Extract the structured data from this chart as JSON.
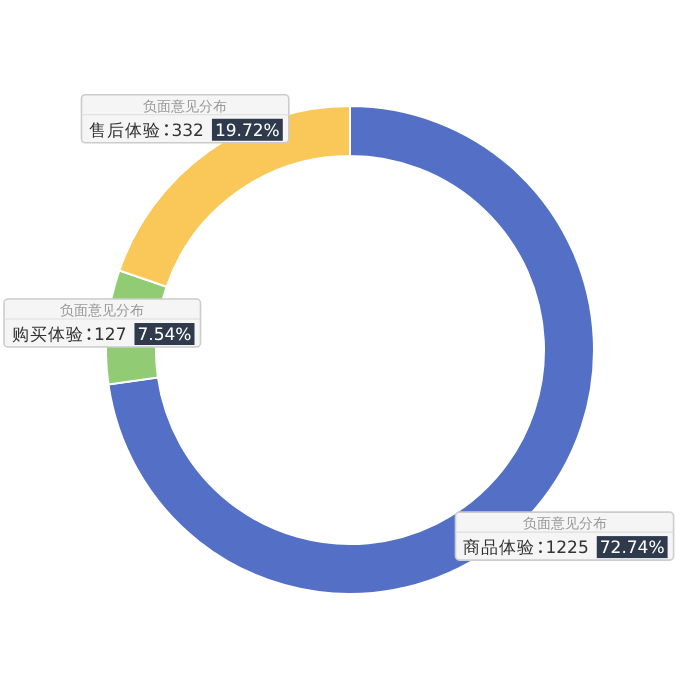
{
  "chart_data": {
    "type": "donut",
    "series": [
      {
        "name": "负面意见分布",
        "values": [
          1225,
          127,
          332
        ]
      }
    ],
    "categories": [
      "商品体验",
      "购买体验",
      "售后体验"
    ],
    "colors": [
      "#5470c6",
      "#91cc75",
      "#fac858"
    ],
    "data_labels": true,
    "value_labels": [
      "72.74%",
      "7.54%",
      "19.72%"
    ]
  }
}
